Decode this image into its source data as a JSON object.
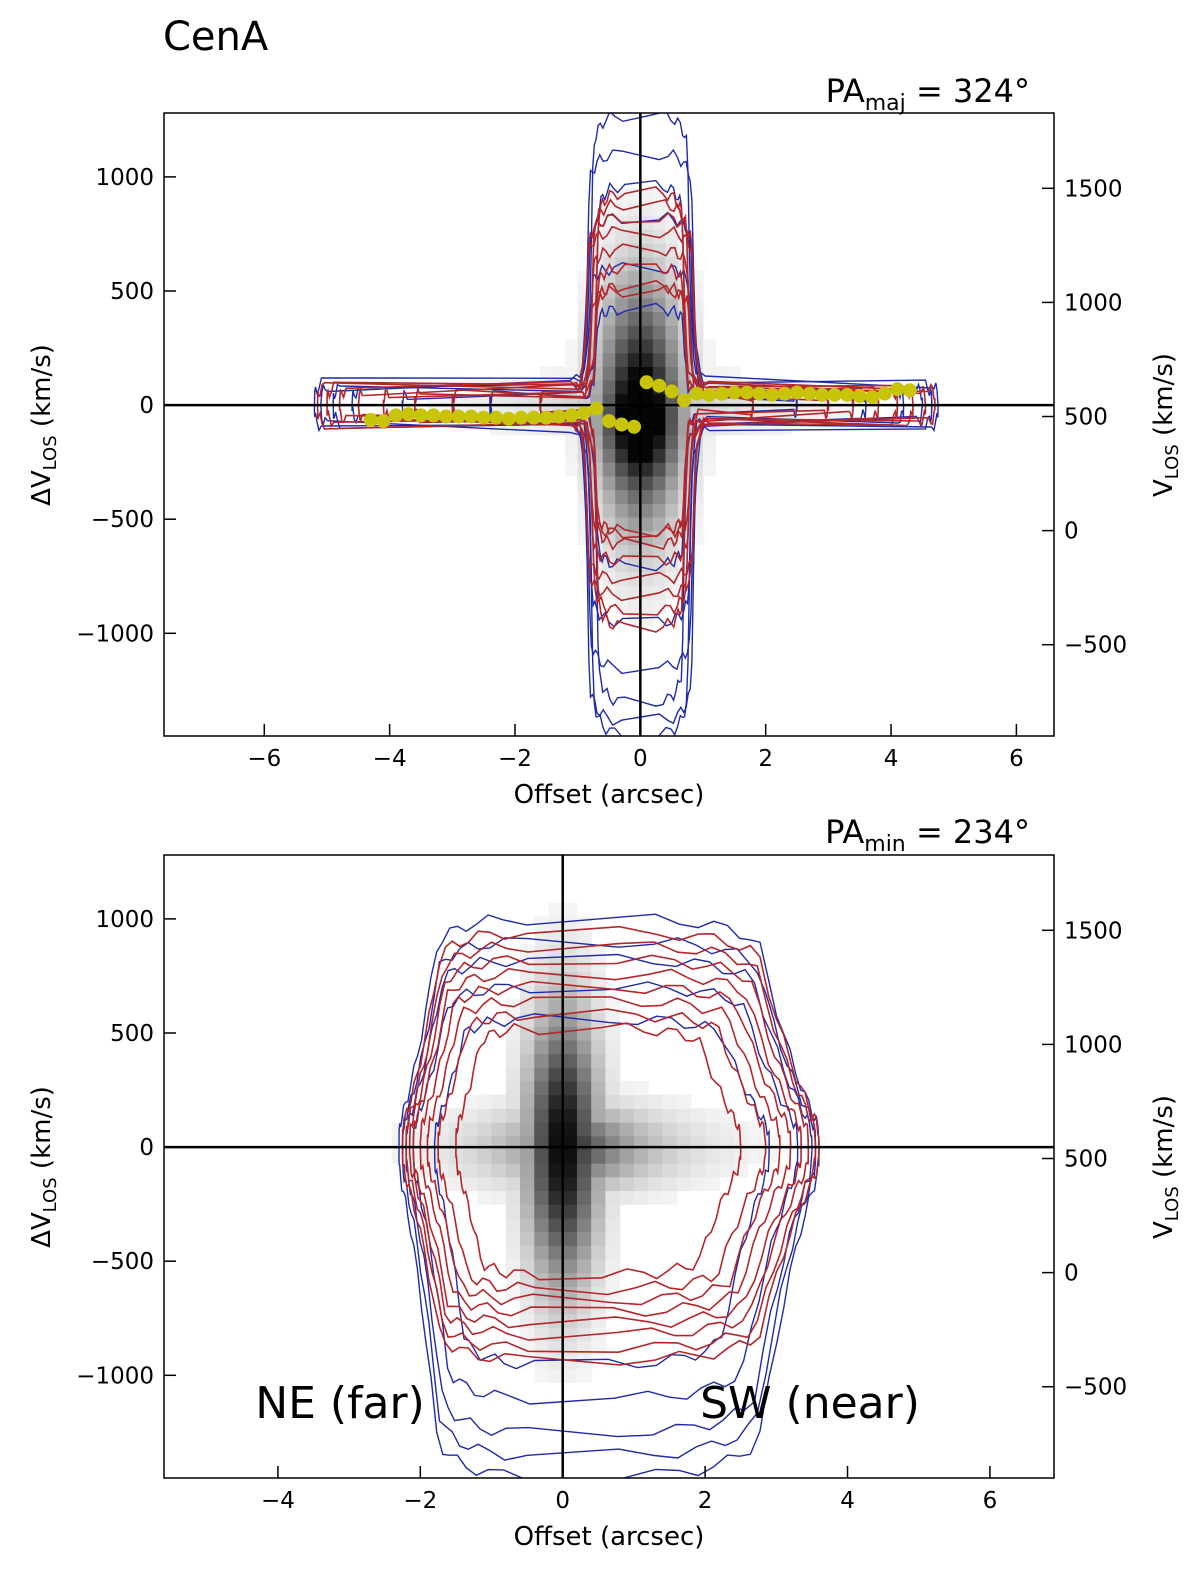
{
  "figure_title": "CenA",
  "colors": {
    "outer_contour": "#1f2aa8",
    "inner_contour": "#b3262b",
    "points": "#c8c40a",
    "axis": "#000000"
  },
  "chart_data": [
    {
      "type": "contour",
      "name": "major-axis-pv",
      "annotation": {
        "base": "PA",
        "sub": "maj",
        "rest": " = 324°"
      },
      "xlabel": "Offset (arcsec)",
      "ylabel_left": {
        "base": "ΔV",
        "sub": "LOS",
        "rest": " (km/s)"
      },
      "ylabel_right": {
        "base": "V",
        "sub": "LOS",
        "rest": " (km/s)"
      },
      "xlim": [
        -7.6,
        6.6
      ],
      "ylim": [
        -1450,
        1280
      ],
      "vsys": 550,
      "xticks": [
        -6,
        -4,
        -2,
        0,
        2,
        4,
        6
      ],
      "xtick_labels": [
        "−6",
        "−4",
        "−2",
        "0",
        "2",
        "4",
        "6"
      ],
      "yticks": [
        -1000,
        -500,
        0,
        500,
        1000
      ],
      "ytick_labels": [
        "−1000",
        "−500",
        "0",
        "500",
        "1000"
      ],
      "yticks_right": [
        -500,
        0,
        500,
        1000,
        1500
      ],
      "ytick_labels_right": [
        "−500",
        "0",
        "500",
        "1000",
        "1500"
      ],
      "zero_lines": true,
      "contour_extents": {
        "blue": [
          {
            "xmin": -5.2,
            "xmax": 4.75,
            "vmin": -1440,
            "vmax": 1270,
            "w": 120
          },
          {
            "xmin": -5.1,
            "xmax": 4.65,
            "vmin": -1380,
            "vmax": 1100,
            "w": 100
          },
          {
            "xmin": -4.9,
            "xmax": 4.5,
            "vmin": -1300,
            "vmax": 960,
            "w": 85
          },
          {
            "xmin": -4.6,
            "xmax": 4.2,
            "vmin": -1150,
            "vmax": 820,
            "w": 65
          },
          {
            "xmin": -3.8,
            "xmax": 3.6,
            "vmin": -950,
            "vmax": 600,
            "w": 45
          },
          {
            "xmin": -2.4,
            "xmax": 2.5,
            "vmin": -700,
            "vmax": 420,
            "w": 30
          }
        ],
        "red": [
          {
            "xmin": -5.15,
            "xmax": 4.7,
            "vmin": -970,
            "vmax": 930,
            "w": 95
          },
          {
            "xmin": -5.0,
            "xmax": 4.55,
            "vmin": -900,
            "vmax": 880,
            "w": 85
          },
          {
            "xmin": -4.8,
            "xmax": 4.35,
            "vmin": -830,
            "vmax": 820,
            "w": 75
          },
          {
            "xmin": -4.5,
            "xmax": 4.1,
            "vmin": -760,
            "vmax": 760,
            "w": 65
          },
          {
            "xmin": -4.1,
            "xmax": 3.8,
            "vmin": -680,
            "vmax": 680,
            "w": 55
          },
          {
            "xmin": -3.6,
            "xmax": 3.4,
            "vmin": -610,
            "vmax": 600,
            "w": 45
          },
          {
            "xmin": -3.0,
            "xmax": 3.0,
            "vmin": -550,
            "vmax": 520,
            "w": 35
          },
          {
            "xmin": -1.6,
            "xmax": 1.8,
            "vmin": -560,
            "vmax": 500,
            "w": 25
          }
        ]
      },
      "points": {
        "x": [
          -4.3,
          -4.1,
          -3.9,
          -3.7,
          -3.5,
          -3.3,
          -3.1,
          -2.9,
          -2.7,
          -2.5,
          -2.3,
          -2.1,
          -1.9,
          -1.7,
          -1.5,
          -1.3,
          -1.1,
          -0.9,
          -0.7,
          -0.5,
          -0.3,
          -0.1,
          0.1,
          0.3,
          0.5,
          0.7,
          0.9,
          1.1,
          1.3,
          1.5,
          1.7,
          1.9,
          2.1,
          2.3,
          2.5,
          2.7,
          2.9,
          3.1,
          3.3,
          3.5,
          3.7,
          3.9,
          4.1,
          4.3
        ],
        "y": [
          -65,
          -70,
          -45,
          -40,
          -45,
          -45,
          -50,
          -50,
          -50,
          -55,
          -55,
          -60,
          -55,
          -55,
          -55,
          -50,
          -45,
          -35,
          -15,
          -70,
          -85,
          -95,
          100,
          85,
          60,
          20,
          50,
          45,
          50,
          55,
          55,
          50,
          45,
          50,
          55,
          50,
          45,
          45,
          45,
          40,
          35,
          50,
          70,
          65
        ]
      }
    },
    {
      "type": "contour",
      "name": "minor-axis-pv",
      "annotation": {
        "base": "PA",
        "sub": "min",
        "rest": " = 234°"
      },
      "xlabel": "Offset (arcsec)",
      "ylabel_left": {
        "base": "ΔV",
        "sub": "LOS",
        "rest": " (km/s)"
      },
      "ylabel_right": {
        "base": "V",
        "sub": "LOS",
        "rest": " (km/s)"
      },
      "xlim": [
        -5.6,
        6.9
      ],
      "ylim": [
        -1450,
        1280
      ],
      "vsys": 550,
      "xticks": [
        -4,
        -2,
        0,
        2,
        4,
        6
      ],
      "xtick_labels": [
        "−4",
        "−2",
        "0",
        "2",
        "4",
        "6"
      ],
      "yticks": [
        -1000,
        -500,
        0,
        500,
        1000
      ],
      "ytick_labels": [
        "−1000",
        "−500",
        "0",
        "500",
        "1000"
      ],
      "yticks_right": [
        -500,
        0,
        500,
        1000,
        1500
      ],
      "ytick_labels_right": [
        "−500",
        "0",
        "500",
        "1000",
        "1500"
      ],
      "zero_lines": true,
      "region_labels": [
        "NE (far)",
        "SW (near)"
      ],
      "contour_extents": {
        "blue": [
          {
            "xmin": -2.3,
            "xmax": 3.6,
            "vmin": -1440,
            "vmax": 1000,
            "w": 0
          },
          {
            "xmin": -2.25,
            "xmax": 3.55,
            "vmin": -1350,
            "vmax": 900,
            "w": 0
          },
          {
            "xmin": -2.2,
            "xmax": 3.5,
            "vmin": -1250,
            "vmax": 820,
            "w": 0
          },
          {
            "xmin": -2.1,
            "xmax": 3.3,
            "vmin": -1100,
            "vmax": 700,
            "w": 0
          },
          {
            "xmin": -1.8,
            "xmax": 2.9,
            "vmin": -950,
            "vmax": 560,
            "w": 0
          }
        ],
        "red": [
          {
            "xmin": -2.25,
            "xmax": 3.6,
            "vmin": -930,
            "vmax": 940,
            "w": 0
          },
          {
            "xmin": -2.2,
            "xmax": 3.55,
            "vmin": -880,
            "vmax": 880,
            "w": 0
          },
          {
            "xmin": -2.15,
            "xmax": 3.45,
            "vmin": -820,
            "vmax": 820,
            "w": 0
          },
          {
            "xmin": -2.1,
            "xmax": 3.35,
            "vmin": -770,
            "vmax": 760,
            "w": 0
          },
          {
            "xmin": -2.0,
            "xmax": 3.2,
            "vmin": -720,
            "vmax": 700,
            "w": 0
          },
          {
            "xmin": -1.9,
            "xmax": 3.05,
            "vmin": -670,
            "vmax": 640,
            "w": 0
          },
          {
            "xmin": -1.75,
            "xmax": 2.85,
            "vmin": -620,
            "vmax": 580,
            "w": 0
          },
          {
            "xmin": -1.5,
            "xmax": 2.5,
            "vmin": -560,
            "vmax": 520,
            "w": 0
          }
        ]
      }
    }
  ]
}
